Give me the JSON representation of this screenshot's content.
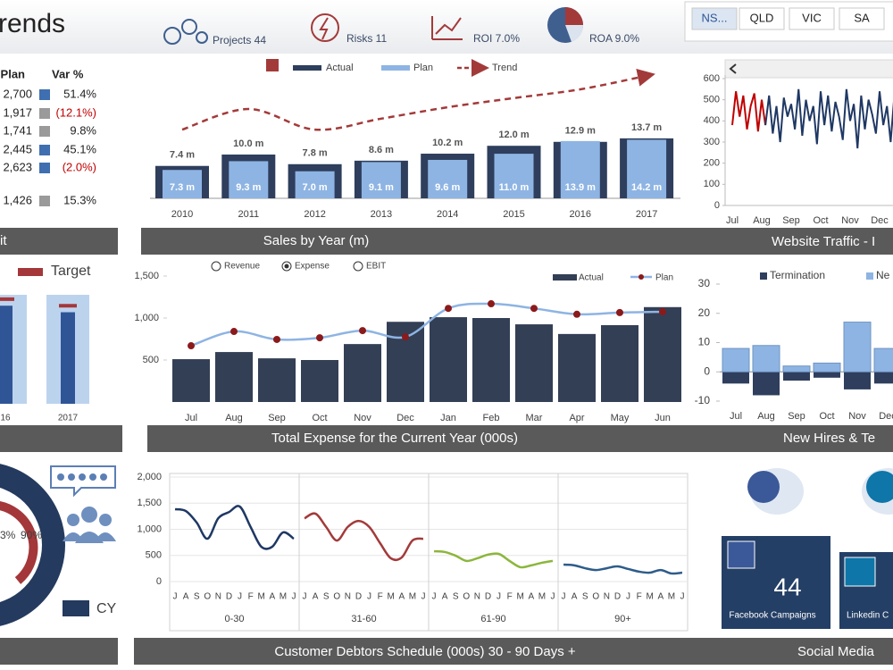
{
  "header": {
    "title": "rends",
    "kpis": [
      "Projects 44",
      "Risks 11",
      "ROI 7.0%",
      "ROA 9.0%"
    ],
    "regions": [
      "NS...",
      "QLD",
      "VIC",
      "SA"
    ]
  },
  "table": {
    "columns": [
      "Plan",
      "Var %"
    ],
    "rows": [
      [
        "2,700",
        "51.4%"
      ],
      [
        "1,917",
        "(12.1%)"
      ],
      [
        "1,741",
        "9.8%"
      ],
      [
        "2,445",
        "45.1%"
      ],
      [
        "2,623",
        "(2.0%)"
      ],
      [
        "1,426",
        "15.3%"
      ]
    ]
  },
  "gauge": {
    "labels": [
      "3%",
      "90%"
    ],
    "legend": "CY"
  },
  "social": {
    "title": "Social  Media",
    "facebook_count": "44",
    "facebook_label": "Facebook Campaigns",
    "linkedin_label": "Linkedin C"
  },
  "chart_data": [
    {
      "type": "bullet",
      "title": "it",
      "categories": [
        "16",
        "2017"
      ],
      "values": [
        90,
        84
      ],
      "color": "#2f5597",
      "target": {
        "name": "Target",
        "color": "#a4373a",
        "values": [
          96,
          90
        ]
      }
    },
    {
      "type": "bar",
      "title": "Sales by Year (m)",
      "categories": [
        "2010",
        "2011",
        "2012",
        "2013",
        "2014",
        "2015",
        "2016",
        "2017"
      ],
      "series": [
        {
          "name": "Actual",
          "color": "#2e3e5c",
          "values": [
            7.4,
            10.0,
            7.8,
            8.6,
            10.2,
            12.0,
            12.9,
            13.7
          ],
          "value_labels": [
            "7.4 m",
            "10.0 m",
            "7.8 m",
            "8.6 m",
            "10.2 m",
            "12.0 m",
            "12.9 m",
            "13.7 m"
          ]
        },
        {
          "name": "Plan",
          "color": "#8eb4e3",
          "values": [
            7.3,
            9.3,
            7.0,
            9.1,
            9.6,
            11.0,
            13.9,
            14.2
          ],
          "value_labels": [
            "7.3 m",
            "9.3 m",
            "7.0 m",
            "9.1 m",
            "9.6 m",
            "11.0 m",
            "13.9 m",
            "14.2 m"
          ]
        },
        {
          "name": "Trend",
          "type": "line",
          "color": "#a33a3a",
          "values": [
            15.7,
            20.4,
            15.7,
            18.2,
            20.8,
            22.9,
            24.9,
            28.0
          ]
        }
      ]
    },
    {
      "type": "line",
      "title": "Website Traffic - I",
      "categories": [
        "Jul",
        null,
        null,
        null,
        null,
        null,
        null,
        null,
        "Aug",
        null,
        null,
        null,
        null,
        null,
        null,
        null,
        "Sep",
        null,
        null,
        null,
        null,
        null,
        null,
        null,
        "Oct",
        null,
        null,
        null,
        null,
        null,
        null,
        null,
        "Nov",
        null,
        null,
        null,
        null,
        null,
        null,
        null,
        "Dec",
        null,
        null,
        null,
        null,
        null,
        null,
        null
      ],
      "series": [
        {
          "color": "#c00000",
          "values": [
            380,
            540,
            420,
            520,
            360,
            470,
            530,
            350,
            500,
            380,
            null,
            null,
            null,
            null,
            null,
            null,
            null,
            null,
            null,
            null,
            null,
            null,
            null,
            null,
            null,
            null,
            null,
            null,
            null,
            null,
            null,
            null,
            null,
            null,
            null,
            null,
            null,
            null,
            null,
            null,
            null,
            null,
            null,
            null,
            null,
            null,
            null,
            null
          ]
        },
        {
          "color": "#1f3864",
          "values": [
            null,
            null,
            null,
            null,
            null,
            null,
            null,
            null,
            null,
            380,
            520,
            340,
            470,
            300,
            510,
            420,
            480,
            360,
            550,
            330,
            500,
            400,
            470,
            290,
            540,
            380,
            520,
            350,
            490,
            420,
            310,
            550,
            400,
            480,
            270,
            520,
            360,
            500,
            430,
            340,
            540,
            380,
            470,
            300,
            520,
            410,
            490,
            350
          ]
        }
      ],
      "ylim": [
        0,
        600
      ],
      "yticks": [
        0,
        100,
        200,
        300,
        400,
        500,
        600
      ]
    },
    {
      "type": "combo",
      "title": "Total Expense for the Current Year (000s)",
      "options": [
        "Revenue",
        "Expense",
        "EBIT"
      ],
      "selected_option": 1,
      "categories": [
        "Jul",
        "Aug",
        "Sep",
        "Oct",
        "Nov",
        "Dec",
        "Jan",
        "Feb",
        "Mar",
        "Apr",
        "May",
        "Jun"
      ],
      "series": [
        {
          "name": "Actual",
          "color": "#333f55",
          "values": [
            510,
            595,
            520,
            500,
            690,
            955,
            1010,
            1000,
            925,
            810,
            915,
            1130
          ]
        },
        {
          "name": "Plan",
          "type": "line",
          "color": "#8eb4e3",
          "marker_color": "#8b1a1a",
          "values": [
            670,
            840,
            745,
            765,
            850,
            775,
            1115,
            1170,
            1115,
            1045,
            1065,
            1075
          ]
        }
      ],
      "ylim": [
        0,
        1500
      ],
      "yticks": [
        500,
        {
          "value": 1000,
          "label": "1,000"
        },
        {
          "value": 1500,
          "label": "1,500"
        }
      ]
    },
    {
      "type": "diverging_bar",
      "title": "New Hires & Te",
      "categories": [
        "Jul",
        "Aug",
        "Sep",
        "Oct",
        "Nov",
        "Dec"
      ],
      "series": [
        {
          "name": "Termination",
          "color": "#2e3e5c",
          "values": [
            -4,
            -8,
            -3,
            -2,
            -6,
            -4
          ]
        },
        {
          "name": "Ne",
          "color": "#8eb4e3",
          "values": [
            8,
            9,
            2,
            3,
            17,
            8
          ]
        }
      ],
      "ylim": [
        -10,
        30
      ],
      "yticks": [
        -10,
        0,
        10,
        20,
        30
      ]
    },
    {
      "type": "small_multiples_line",
      "title": "Customer Debtors Schedule (000s)  30 - 90 Days +",
      "categories": [
        "J",
        "A",
        "S",
        "O",
        "N",
        "D",
        "J",
        "F",
        "M",
        "A",
        "M",
        "J"
      ],
      "panels": [
        {
          "name": "0-30",
          "color": "#1f3864",
          "values": [
            1385,
            1350,
            1130,
            820,
            1210,
            1330,
            1435,
            1045,
            665,
            665,
            940,
            820
          ]
        },
        {
          "name": "31-60",
          "color": "#a33a3a",
          "values": [
            1210,
            1300,
            1045,
            785,
            1045,
            1160,
            1045,
            735,
            445,
            460,
            785,
            820
          ]
        },
        {
          "name": "61-90",
          "color": "#8cb63c",
          "values": [
            580,
            565,
            495,
            395,
            445,
            515,
            530,
            395,
            275,
            310,
            360,
            395
          ]
        },
        {
          "name": "90+",
          "color": "#2e5c8a",
          "values": [
            325,
            310,
            255,
            220,
            255,
            290,
            240,
            190,
            170,
            220,
            155,
            170
          ]
        }
      ],
      "ylim": [
        0,
        2000
      ],
      "yticks": [
        0,
        500,
        {
          "value": 1000,
          "label": "1,000"
        },
        {
          "value": 1500,
          "label": "1,500"
        },
        {
          "value": 2000,
          "label": "2,000"
        }
      ]
    }
  ]
}
